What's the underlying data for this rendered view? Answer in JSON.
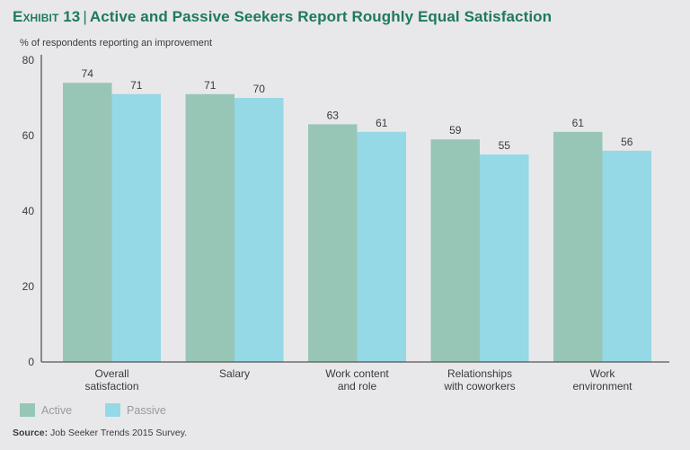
{
  "header": {
    "exhibit_label": "Exhibit 13",
    "separator": "|",
    "title": "Active and Passive Seekers Report Roughly Equal Satisfaction",
    "subtitle": "% of respondents reporting an improvement"
  },
  "footer": {
    "source_label": "Source:",
    "source_text": " Job Seeker Trends 2015 Survey."
  },
  "colors": {
    "active": "#98c6b6",
    "passive": "#95d8e6",
    "title": "#1f7a5a",
    "axis": "#555555",
    "text": "#3a3a3a",
    "background": "#e8e8ea"
  },
  "chart_data": {
    "type": "bar",
    "title": "Active and Passive Seekers Report Roughly Equal Satisfaction",
    "ylabel": "% of respondents reporting an improvement",
    "xlabel": "",
    "ylim": [
      0,
      80
    ],
    "yticks": [
      0,
      20,
      40,
      60,
      80
    ],
    "grid": false,
    "legend_position": "bottom-left",
    "categories": [
      [
        "Overall",
        "satisfaction"
      ],
      [
        "Salary"
      ],
      [
        "Work content",
        "and role"
      ],
      [
        "Relationships",
        "with coworkers"
      ],
      [
        "Work",
        "environment"
      ]
    ],
    "series": [
      {
        "name": "Active",
        "color": "#98c6b6",
        "values": [
          74,
          71,
          63,
          59,
          61
        ]
      },
      {
        "name": "Passive",
        "color": "#95d8e6",
        "values": [
          71,
          70,
          61,
          55,
          56
        ]
      }
    ]
  }
}
